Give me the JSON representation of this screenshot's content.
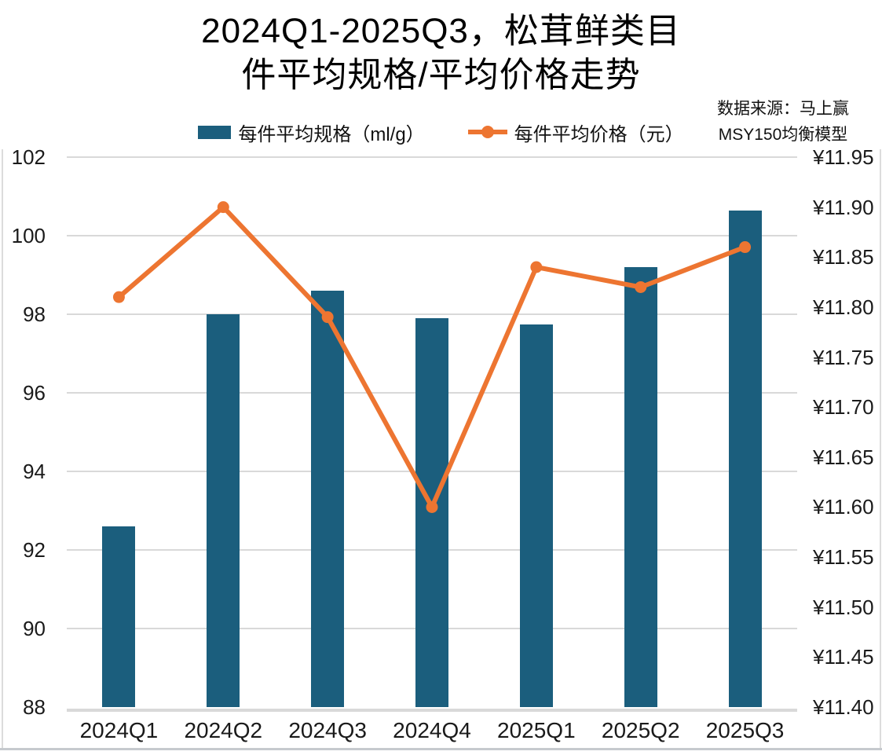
{
  "title": {
    "line1": "2024Q1-2025Q3，松茸鲜类目",
    "line2": "件平均规格/平均价格走势"
  },
  "source": {
    "line1": "数据来源：马上赢",
    "line2": "MSY150均衡模型"
  },
  "chart_data": {
    "type": "combo",
    "categories": [
      "2024Q1",
      "2024Q2",
      "2024Q3",
      "2024Q4",
      "2025Q1",
      "2025Q2",
      "2025Q3"
    ],
    "series": [
      {
        "name": "每件平均规格（ml/g）",
        "type": "bar",
        "axis": "left",
        "color": "#1B5E7D",
        "values": [
          92.6,
          98.0,
          98.6,
          97.9,
          97.75,
          99.2,
          100.65
        ]
      },
      {
        "name": "每件平均价格（元）",
        "type": "line",
        "axis": "right",
        "color": "#ED7531",
        "values": [
          11.81,
          11.9,
          11.79,
          11.6,
          11.84,
          11.82,
          11.86
        ]
      }
    ],
    "left_axis": {
      "min": 88,
      "max": 102,
      "tick_step": 2,
      "tick_labels": [
        "102",
        "100",
        "98",
        "96",
        "94",
        "92",
        "90",
        "88"
      ]
    },
    "right_axis": {
      "min": 11.4,
      "max": 11.95,
      "tick_step": 0.05,
      "tick_prefix": "¥",
      "tick_labels": [
        "¥11.95",
        "¥11.90",
        "¥11.85",
        "¥11.80",
        "¥11.75",
        "¥11.70",
        "¥11.65",
        "¥11.60",
        "¥11.55",
        "¥11.50",
        "¥11.45",
        "¥11.40"
      ]
    },
    "grid": true,
    "grid_color": "#D9D9D9",
    "axis_line_color": "#D9D9D9",
    "legend_position": "top"
  }
}
